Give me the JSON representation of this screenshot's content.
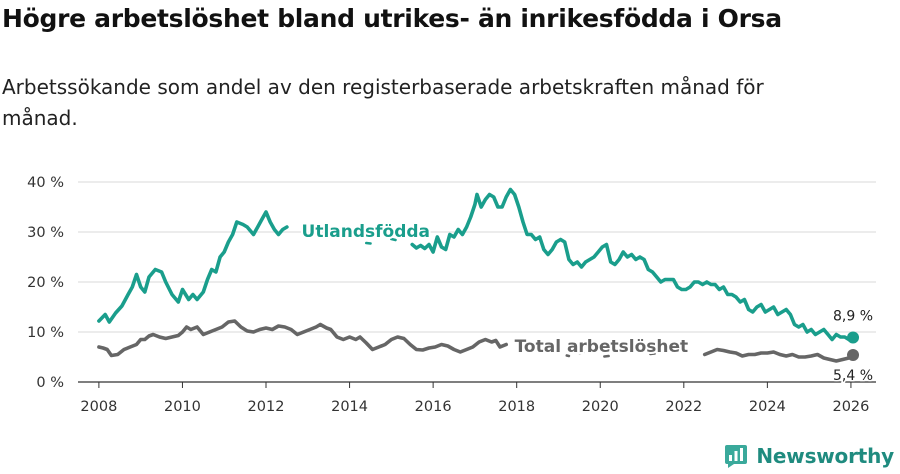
{
  "title": "Högre arbetslöshet bland utrikes- än inrikesfödda i Orsa",
  "subtitle": "Arbetssökande som andel av den registerbaserade arbetskraften månad för månad.",
  "brand": {
    "name": "Newsworthy",
    "color": "#1f8b7f"
  },
  "chart_data": {
    "type": "line",
    "title": "Högre arbetslöshet bland utrikes- än inrikesfödda i Orsa",
    "xlabel": "",
    "ylabel": "",
    "xlim": [
      2007.5,
      2026.6
    ],
    "ylim": [
      0,
      40
    ],
    "grid": true,
    "x_ticks": [
      2008,
      2010,
      2012,
      2014,
      2016,
      2018,
      2020,
      2022,
      2024,
      2026
    ],
    "x_tick_labels": [
      "2008",
      "2010",
      "2012",
      "2014",
      "2016",
      "2018",
      "2020",
      "2022",
      "2024",
      "2026"
    ],
    "y_ticks": [
      0,
      10,
      20,
      30,
      40
    ],
    "y_tick_labels": [
      "0 %",
      "10 %",
      "20 %",
      "30 %",
      "40 %"
    ],
    "series": [
      {
        "name": "Utlandsfödda",
        "color": "#1a9e8c",
        "end_label": "8,9 %",
        "points": [
          [
            2008.0,
            12.2
          ],
          [
            2008.15,
            13.5
          ],
          [
            2008.25,
            12.0
          ],
          [
            2008.4,
            13.8
          ],
          [
            2008.55,
            15.2
          ],
          [
            2008.7,
            17.5
          ],
          [
            2008.8,
            19.0
          ],
          [
            2008.9,
            21.5
          ],
          [
            2009.0,
            19.0
          ],
          [
            2009.1,
            18.0
          ],
          [
            2009.2,
            21.0
          ],
          [
            2009.35,
            22.5
          ],
          [
            2009.5,
            22.0
          ],
          [
            2009.6,
            20.0
          ],
          [
            2009.75,
            17.5
          ],
          [
            2009.9,
            16.0
          ],
          [
            2010.0,
            18.5
          ],
          [
            2010.15,
            16.5
          ],
          [
            2010.25,
            17.5
          ],
          [
            2010.35,
            16.5
          ],
          [
            2010.5,
            18.0
          ],
          [
            2010.6,
            20.5
          ],
          [
            2010.7,
            22.5
          ],
          [
            2010.8,
            22.0
          ],
          [
            2010.9,
            25.0
          ],
          [
            2011.0,
            26.0
          ],
          [
            2011.1,
            28.0
          ],
          [
            2011.2,
            29.5
          ],
          [
            2011.3,
            32.0
          ],
          [
            2011.45,
            31.5
          ],
          [
            2011.55,
            31.0
          ],
          [
            2011.7,
            29.5
          ],
          [
            2011.8,
            31.0
          ],
          [
            2011.9,
            32.5
          ],
          [
            2012.0,
            34.0
          ],
          [
            2012.1,
            32.0
          ],
          [
            2012.2,
            30.5
          ],
          [
            2012.3,
            29.5
          ],
          [
            2012.4,
            30.5
          ],
          [
            2012.5,
            31.0
          ]
        ],
        "points_segment_2": [
          [
            2015.5,
            27.5
          ],
          [
            2015.6,
            26.8
          ],
          [
            2015.7,
            27.3
          ],
          [
            2015.8,
            26.7
          ],
          [
            2015.9,
            27.5
          ],
          [
            2016.0,
            26.0
          ],
          [
            2016.1,
            29.0
          ],
          [
            2016.2,
            27.0
          ],
          [
            2016.3,
            26.5
          ],
          [
            2016.4,
            29.5
          ],
          [
            2016.5,
            29.0
          ],
          [
            2016.6,
            30.5
          ],
          [
            2016.7,
            29.5
          ],
          [
            2016.8,
            31.0
          ],
          [
            2016.9,
            33.0
          ],
          [
            2017.0,
            35.5
          ],
          [
            2017.05,
            37.5
          ],
          [
            2017.15,
            35.0
          ],
          [
            2017.25,
            36.5
          ],
          [
            2017.35,
            37.5
          ],
          [
            2017.45,
            37.0
          ],
          [
            2017.55,
            35.0
          ],
          [
            2017.65,
            35.0
          ],
          [
            2017.75,
            37.0
          ],
          [
            2017.85,
            38.5
          ],
          [
            2017.95,
            37.5
          ],
          [
            2018.05,
            35.0
          ],
          [
            2018.15,
            32.0
          ],
          [
            2018.25,
            29.5
          ],
          [
            2018.35,
            29.5
          ],
          [
            2018.45,
            28.5
          ],
          [
            2018.55,
            29.0
          ],
          [
            2018.65,
            26.5
          ],
          [
            2018.75,
            25.5
          ],
          [
            2018.85,
            26.5
          ],
          [
            2018.95,
            28.0
          ],
          [
            2019.05,
            28.5
          ],
          [
            2019.15,
            28.0
          ],
          [
            2019.25,
            24.5
          ],
          [
            2019.35,
            23.5
          ],
          [
            2019.45,
            24.0
          ],
          [
            2019.55,
            23.0
          ],
          [
            2019.65,
            24.0
          ],
          [
            2019.75,
            24.5
          ],
          [
            2019.85,
            25.0
          ],
          [
            2019.95,
            26.0
          ],
          [
            2020.05,
            27.0
          ],
          [
            2020.15,
            27.5
          ],
          [
            2020.25,
            24.0
          ],
          [
            2020.35,
            23.5
          ],
          [
            2020.45,
            24.5
          ],
          [
            2020.55,
            26.0
          ],
          [
            2020.65,
            25.0
          ],
          [
            2020.75,
            25.5
          ],
          [
            2020.85,
            24.5
          ],
          [
            2020.95,
            25.0
          ],
          [
            2021.05,
            24.5
          ],
          [
            2021.15,
            22.5
          ],
          [
            2021.25,
            22.0
          ],
          [
            2021.35,
            21.0
          ],
          [
            2021.45,
            20.0
          ],
          [
            2021.55,
            20.5
          ],
          [
            2021.65,
            20.5
          ],
          [
            2021.75,
            20.5
          ],
          [
            2021.85,
            19.0
          ],
          [
            2021.95,
            18.5
          ],
          [
            2022.05,
            18.5
          ],
          [
            2022.15,
            19.0
          ],
          [
            2022.25,
            20.0
          ],
          [
            2022.35,
            20.0
          ],
          [
            2022.45,
            19.5
          ],
          [
            2022.55,
            20.0
          ],
          [
            2022.65,
            19.5
          ],
          [
            2022.75,
            19.5
          ],
          [
            2022.85,
            18.5
          ],
          [
            2022.95,
            19.0
          ],
          [
            2023.05,
            17.5
          ],
          [
            2023.15,
            17.5
          ],
          [
            2023.25,
            17.0
          ],
          [
            2023.35,
            16.0
          ],
          [
            2023.45,
            16.5
          ],
          [
            2023.55,
            14.5
          ],
          [
            2023.65,
            14.0
          ],
          [
            2023.75,
            15.0
          ],
          [
            2023.85,
            15.5
          ],
          [
            2023.95,
            14.0
          ],
          [
            2024.05,
            14.5
          ],
          [
            2024.15,
            15.0
          ],
          [
            2024.25,
            13.5
          ],
          [
            2024.35,
            14.0
          ],
          [
            2024.45,
            14.5
          ],
          [
            2024.55,
            13.5
          ],
          [
            2024.65,
            11.5
          ],
          [
            2024.75,
            11.0
          ],
          [
            2024.85,
            11.5
          ],
          [
            2024.95,
            10.0
          ],
          [
            2025.05,
            10.5
          ],
          [
            2025.15,
            9.5
          ],
          [
            2025.25,
            10.0
          ],
          [
            2025.35,
            10.5
          ],
          [
            2025.45,
            9.5
          ],
          [
            2025.55,
            8.5
          ],
          [
            2025.65,
            9.5
          ],
          [
            2025.75,
            9.0
          ],
          [
            2025.85,
            9.0
          ],
          [
            2025.95,
            8.5
          ],
          [
            2026.05,
            8.9
          ]
        ],
        "fragments": [
          [
            [
              2013.2,
              29.7
            ],
            [
              2013.3,
              29.2
            ]
          ],
          [
            [
              2013.6,
              29.1
            ],
            [
              2013.7,
              29.6
            ]
          ],
          [
            [
              2014.4,
              27.8
            ],
            [
              2014.5,
              27.7
            ]
          ],
          [
            [
              2015.0,
              28.6
            ],
            [
              2015.1,
              28.4
            ]
          ]
        ]
      },
      {
        "name": "Total arbetslöshet",
        "color": "#666666",
        "end_label": "5,4 %",
        "points": [
          [
            2008.0,
            7.0
          ],
          [
            2008.1,
            6.8
          ],
          [
            2008.2,
            6.5
          ],
          [
            2008.3,
            5.3
          ],
          [
            2008.45,
            5.5
          ],
          [
            2008.6,
            6.5
          ],
          [
            2008.75,
            7.0
          ],
          [
            2008.9,
            7.5
          ],
          [
            2009.0,
            8.5
          ],
          [
            2009.1,
            8.5
          ],
          [
            2009.2,
            9.2
          ],
          [
            2009.3,
            9.5
          ],
          [
            2009.45,
            9.0
          ],
          [
            2009.6,
            8.7
          ],
          [
            2009.75,
            9.0
          ],
          [
            2009.9,
            9.3
          ],
          [
            2010.0,
            10.0
          ],
          [
            2010.1,
            11.0
          ],
          [
            2010.2,
            10.5
          ],
          [
            2010.35,
            11.0
          ],
          [
            2010.5,
            9.5
          ],
          [
            2010.65,
            10.0
          ],
          [
            2010.8,
            10.5
          ],
          [
            2010.95,
            11.0
          ],
          [
            2011.1,
            12.0
          ],
          [
            2011.25,
            12.2
          ],
          [
            2011.4,
            11.0
          ],
          [
            2011.55,
            10.2
          ],
          [
            2011.7,
            10.0
          ],
          [
            2011.85,
            10.5
          ],
          [
            2012.0,
            10.8
          ],
          [
            2012.15,
            10.5
          ],
          [
            2012.3,
            11.2
          ],
          [
            2012.45,
            11.0
          ],
          [
            2012.6,
            10.5
          ],
          [
            2012.75,
            9.5
          ],
          [
            2012.9,
            10.0
          ],
          [
            2013.05,
            10.5
          ],
          [
            2013.2,
            11.0
          ],
          [
            2013.3,
            11.5
          ],
          [
            2013.45,
            10.8
          ],
          [
            2013.55,
            10.5
          ],
          [
            2013.7,
            9.0
          ],
          [
            2013.85,
            8.5
          ],
          [
            2014.0,
            9.0
          ],
          [
            2014.15,
            8.5
          ],
          [
            2014.25,
            9.0
          ],
          [
            2014.4,
            7.8
          ],
          [
            2014.55,
            6.5
          ],
          [
            2014.7,
            7.0
          ],
          [
            2014.85,
            7.5
          ],
          [
            2015.0,
            8.5
          ],
          [
            2015.15,
            9.0
          ],
          [
            2015.3,
            8.7
          ],
          [
            2015.45,
            7.5
          ],
          [
            2015.6,
            6.5
          ],
          [
            2015.75,
            6.4
          ],
          [
            2015.9,
            6.8
          ],
          [
            2016.05,
            7.0
          ],
          [
            2016.2,
            7.5
          ],
          [
            2016.35,
            7.2
          ],
          [
            2016.5,
            6.5
          ],
          [
            2016.65,
            6.0
          ],
          [
            2016.8,
            6.5
          ],
          [
            2016.95,
            7.0
          ],
          [
            2017.1,
            8.0
          ],
          [
            2017.25,
            8.5
          ],
          [
            2017.4,
            8.0
          ],
          [
            2017.5,
            8.3
          ],
          [
            2017.6,
            7.0
          ],
          [
            2017.75,
            7.5
          ]
        ],
        "points_segment_2": [
          [
            2022.5,
            5.5
          ],
          [
            2022.65,
            6.0
          ],
          [
            2022.8,
            6.5
          ],
          [
            2022.95,
            6.3
          ],
          [
            2023.1,
            6.0
          ],
          [
            2023.25,
            5.8
          ],
          [
            2023.4,
            5.2
          ],
          [
            2023.55,
            5.5
          ],
          [
            2023.7,
            5.5
          ],
          [
            2023.85,
            5.8
          ],
          [
            2024.0,
            5.8
          ],
          [
            2024.15,
            6.0
          ],
          [
            2024.3,
            5.5
          ],
          [
            2024.45,
            5.2
          ],
          [
            2024.6,
            5.5
          ],
          [
            2024.75,
            5.0
          ],
          [
            2024.9,
            5.0
          ],
          [
            2025.05,
            5.2
          ],
          [
            2025.2,
            5.5
          ],
          [
            2025.35,
            4.8
          ],
          [
            2025.5,
            4.5
          ],
          [
            2025.65,
            4.2
          ],
          [
            2025.8,
            4.5
          ],
          [
            2025.95,
            4.8
          ],
          [
            2026.05,
            5.4
          ]
        ],
        "fragments": [
          [
            [
              2019.2,
              5.3
            ],
            [
              2019.25,
              5.2
            ]
          ],
          [
            [
              2019.5,
              5.8
            ],
            [
              2019.6,
              5.9
            ]
          ],
          [
            [
              2020.1,
              5.1
            ],
            [
              2020.2,
              5.2
            ]
          ],
          [
            [
              2021.2,
              5.6
            ],
            [
              2021.3,
              5.7
            ]
          ]
        ]
      }
    ]
  }
}
